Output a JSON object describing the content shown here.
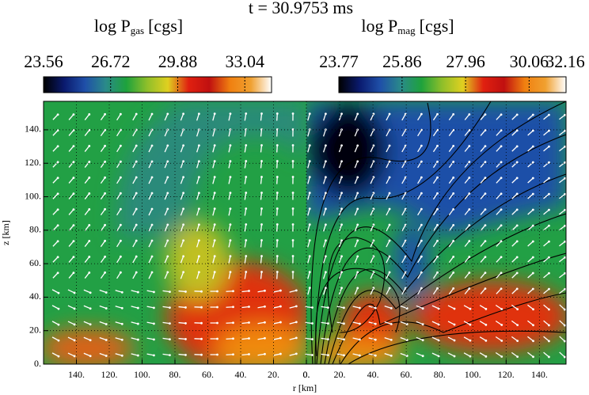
{
  "chart_data": {
    "type": "heatmap",
    "title": "t = 30.9753 ms",
    "x_label": "r [km]",
    "y_label": "z [km]",
    "colormap": [
      "#000000",
      "#0a1a6e",
      "#1f4fa8",
      "#2a8a8a",
      "#1ea23c",
      "#8fbf2a",
      "#e0d020",
      "#e02010",
      "#c01010",
      "#f08010",
      "#f0a030",
      "#ffffff"
    ],
    "colorbars": [
      {
        "label": "log P",
        "sub": "gas",
        "unit": "[cgs]",
        "clim": [
          23.56,
          34.3
        ],
        "ticks": [
          23.56,
          26.72,
          29.88,
          33.04
        ]
      },
      {
        "label": "log P",
        "sub": "mag",
        "unit": "[cgs]",
        "clim": [
          23.77,
          31.28
        ],
        "ticks": [
          23.77,
          25.86,
          27.96,
          30.06,
          32.16
        ]
      }
    ],
    "xlim_left": [
      160,
      0
    ],
    "xticks_left": [
      {
        "value": 140,
        "label": "140."
      },
      {
        "value": 120,
        "label": "120."
      },
      {
        "value": 100,
        "label": "100."
      },
      {
        "value": 80,
        "label": "80."
      },
      {
        "value": 60,
        "label": "60."
      },
      {
        "value": 40,
        "label": "40."
      },
      {
        "value": 20,
        "label": "20."
      },
      {
        "value": 0,
        "label": "0."
      }
    ],
    "xlim_right": [
      0,
      156
    ],
    "xticks_right": [
      {
        "value": 0,
        "label": "0."
      },
      {
        "value": 20,
        "label": "20."
      },
      {
        "value": 40,
        "label": "40."
      },
      {
        "value": 60,
        "label": "60."
      },
      {
        "value": 80,
        "label": "80."
      },
      {
        "value": 100,
        "label": "100."
      },
      {
        "value": 120,
        "label": "120."
      },
      {
        "value": 140,
        "label": "140."
      }
    ],
    "ylim": [
      0,
      157
    ],
    "yticks": [
      {
        "value": 0,
        "label": "0."
      },
      {
        "value": 20,
        "label": "20."
      },
      {
        "value": 40,
        "label": "40."
      },
      {
        "value": 60,
        "label": "60."
      },
      {
        "value": 80,
        "label": "80."
      },
      {
        "value": 100,
        "label": "100."
      },
      {
        "value": 120,
        "label": "120."
      },
      {
        "value": 140,
        "label": "140."
      }
    ],
    "grid": true
  }
}
